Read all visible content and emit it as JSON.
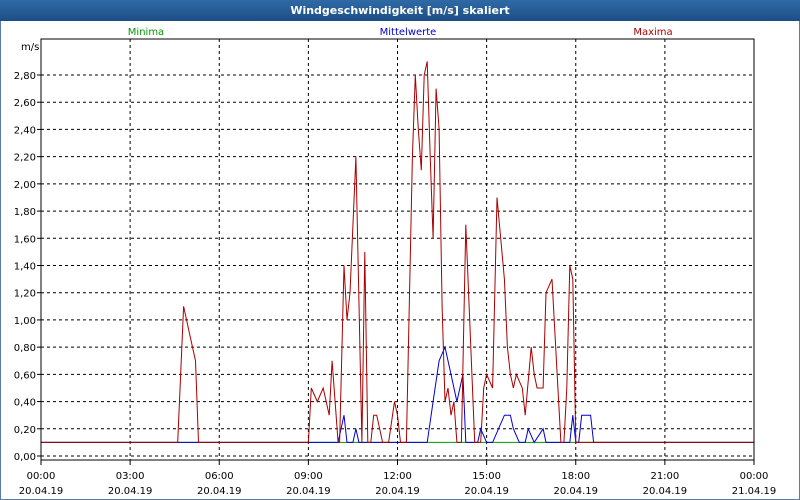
{
  "window": {
    "title": "Windgeschwindigkeit [m/s] skaliert"
  },
  "legend": {
    "min_label": "Minima",
    "mean_label": "Mittelwerte",
    "max_label": "Maxima"
  },
  "colors": {
    "min": "#009900",
    "mean": "#0000cc",
    "max": "#aa0000",
    "grid": "#000000"
  },
  "chart_data": {
    "type": "line",
    "title": "Windgeschwindigkeit [m/s] skaliert",
    "ylabel": "m/s",
    "xlabel": "",
    "ylim": [
      0,
      3.0
    ],
    "xlim": [
      0,
      24
    ],
    "grid": true,
    "yticks": [
      "0,00",
      "0,20",
      "0,40",
      "0,60",
      "0,80",
      "1,00",
      "1,20",
      "1,40",
      "1,60",
      "1,80",
      "2,00",
      "2,20",
      "2,40",
      "2,60",
      "2,80"
    ],
    "ytick_values": [
      0,
      0.2,
      0.4,
      0.6,
      0.8,
      1.0,
      1.2,
      1.4,
      1.6,
      1.8,
      2.0,
      2.2,
      2.4,
      2.6,
      2.8
    ],
    "xtick_values": [
      0,
      3,
      6,
      9,
      12,
      15,
      18,
      21,
      24
    ],
    "xticks": [
      {
        "time": "00:00",
        "date": "20.04.19"
      },
      {
        "time": "03:00",
        "date": "20.04.19"
      },
      {
        "time": "06:00",
        "date": "20.04.19"
      },
      {
        "time": "09:00",
        "date": "20.04.19"
      },
      {
        "time": "12:00",
        "date": "20.04.19"
      },
      {
        "time": "15:00",
        "date": "20.04.19"
      },
      {
        "time": "18:00",
        "date": "20.04.19"
      },
      {
        "time": "21:00",
        "date": "20.04.19"
      },
      {
        "time": "00:00",
        "date": "21.04.19"
      }
    ],
    "series": [
      {
        "name": "Minima",
        "color": "#009900",
        "x": [
          0,
          24
        ],
        "y": [
          0.1,
          0.1
        ]
      },
      {
        "name": "Mittelwerte",
        "color": "#0000cc",
        "x": [
          0,
          10.0,
          10.2,
          10.3,
          10.5,
          10.6,
          10.7,
          10.85,
          11.0,
          13.0,
          13.2,
          13.4,
          13.6,
          13.8,
          14.0,
          14.2,
          14.3,
          14.7,
          14.8,
          15.0,
          15.1,
          15.2,
          15.6,
          15.8,
          15.9,
          16.1,
          16.3,
          16.4,
          16.6,
          16.9,
          17.0,
          17.2,
          17.3,
          17.5,
          17.6,
          17.8,
          17.9,
          18.0,
          18.1,
          18.2,
          18.3,
          18.5,
          18.6,
          18.7,
          24
        ],
        "y": [
          0.1,
          0.1,
          0.3,
          0.1,
          0.1,
          0.2,
          0.1,
          0.1,
          0.1,
          0.1,
          0.4,
          0.7,
          0.8,
          0.6,
          0.4,
          0.6,
          0.1,
          0.1,
          0.2,
          0.1,
          0.1,
          0.1,
          0.3,
          0.3,
          0.2,
          0.1,
          0.1,
          0.2,
          0.1,
          0.2,
          0.1,
          0.1,
          0.1,
          0.1,
          0.1,
          0.1,
          0.3,
          0.1,
          0.1,
          0.3,
          0.3,
          0.3,
          0.1,
          0.1,
          0.1
        ]
      },
      {
        "name": "Maxima",
        "color": "#aa0000",
        "x": [
          0,
          4.6,
          4.8,
          5.0,
          5.1,
          5.2,
          5.3,
          9.0,
          9.1,
          9.3,
          9.5,
          9.6,
          9.7,
          9.8,
          10.0,
          10.05,
          10.2,
          10.3,
          10.4,
          10.6,
          10.8,
          10.9,
          11.0,
          11.1,
          11.2,
          11.3,
          11.5,
          11.7,
          11.9,
          12.0,
          12.1,
          12.2,
          12.3,
          12.5,
          12.6,
          12.7,
          12.8,
          12.9,
          13.0,
          13.1,
          13.2,
          13.3,
          13.4,
          13.5,
          13.6,
          13.7,
          13.8,
          13.9,
          14.0,
          14.15,
          14.3,
          14.6,
          14.8,
          14.9,
          15.0,
          15.2,
          15.35,
          15.6,
          15.7,
          15.8,
          15.9,
          16.0,
          16.2,
          16.3,
          16.5,
          16.6,
          16.7,
          16.9,
          17.0,
          17.2,
          17.4,
          17.5,
          17.6,
          17.7,
          17.8,
          17.9,
          18.0,
          18.1,
          18.2,
          18.3,
          18.4,
          18.5,
          18.6,
          18.7,
          24
        ],
        "y": [
          0.1,
          0.1,
          1.1,
          0.9,
          0.8,
          0.7,
          0.1,
          0.1,
          0.5,
          0.4,
          0.5,
          0.4,
          0.3,
          0.7,
          0.1,
          0.1,
          1.4,
          1.0,
          1.2,
          2.2,
          0.1,
          1.5,
          0.1,
          0.1,
          0.3,
          0.3,
          0.1,
          0.1,
          0.4,
          0.3,
          0.1,
          0.1,
          0.1,
          2.2,
          2.8,
          2.4,
          2.1,
          2.8,
          2.9,
          2.2,
          1.6,
          2.7,
          2.4,
          1.1,
          0.4,
          0.5,
          0.3,
          0.4,
          0.1,
          0.1,
          1.7,
          0.1,
          0.1,
          0.5,
          0.6,
          0.5,
          1.9,
          1.3,
          0.8,
          0.6,
          0.5,
          0.6,
          0.5,
          0.3,
          0.8,
          0.6,
          0.5,
          0.5,
          1.2,
          1.3,
          0.5,
          0.1,
          0.1,
          0.5,
          1.4,
          1.3,
          0.1,
          0.1,
          0.1,
          0.1,
          0.1,
          0.1,
          0.1,
          0.1,
          0.1
        ]
      }
    ]
  }
}
